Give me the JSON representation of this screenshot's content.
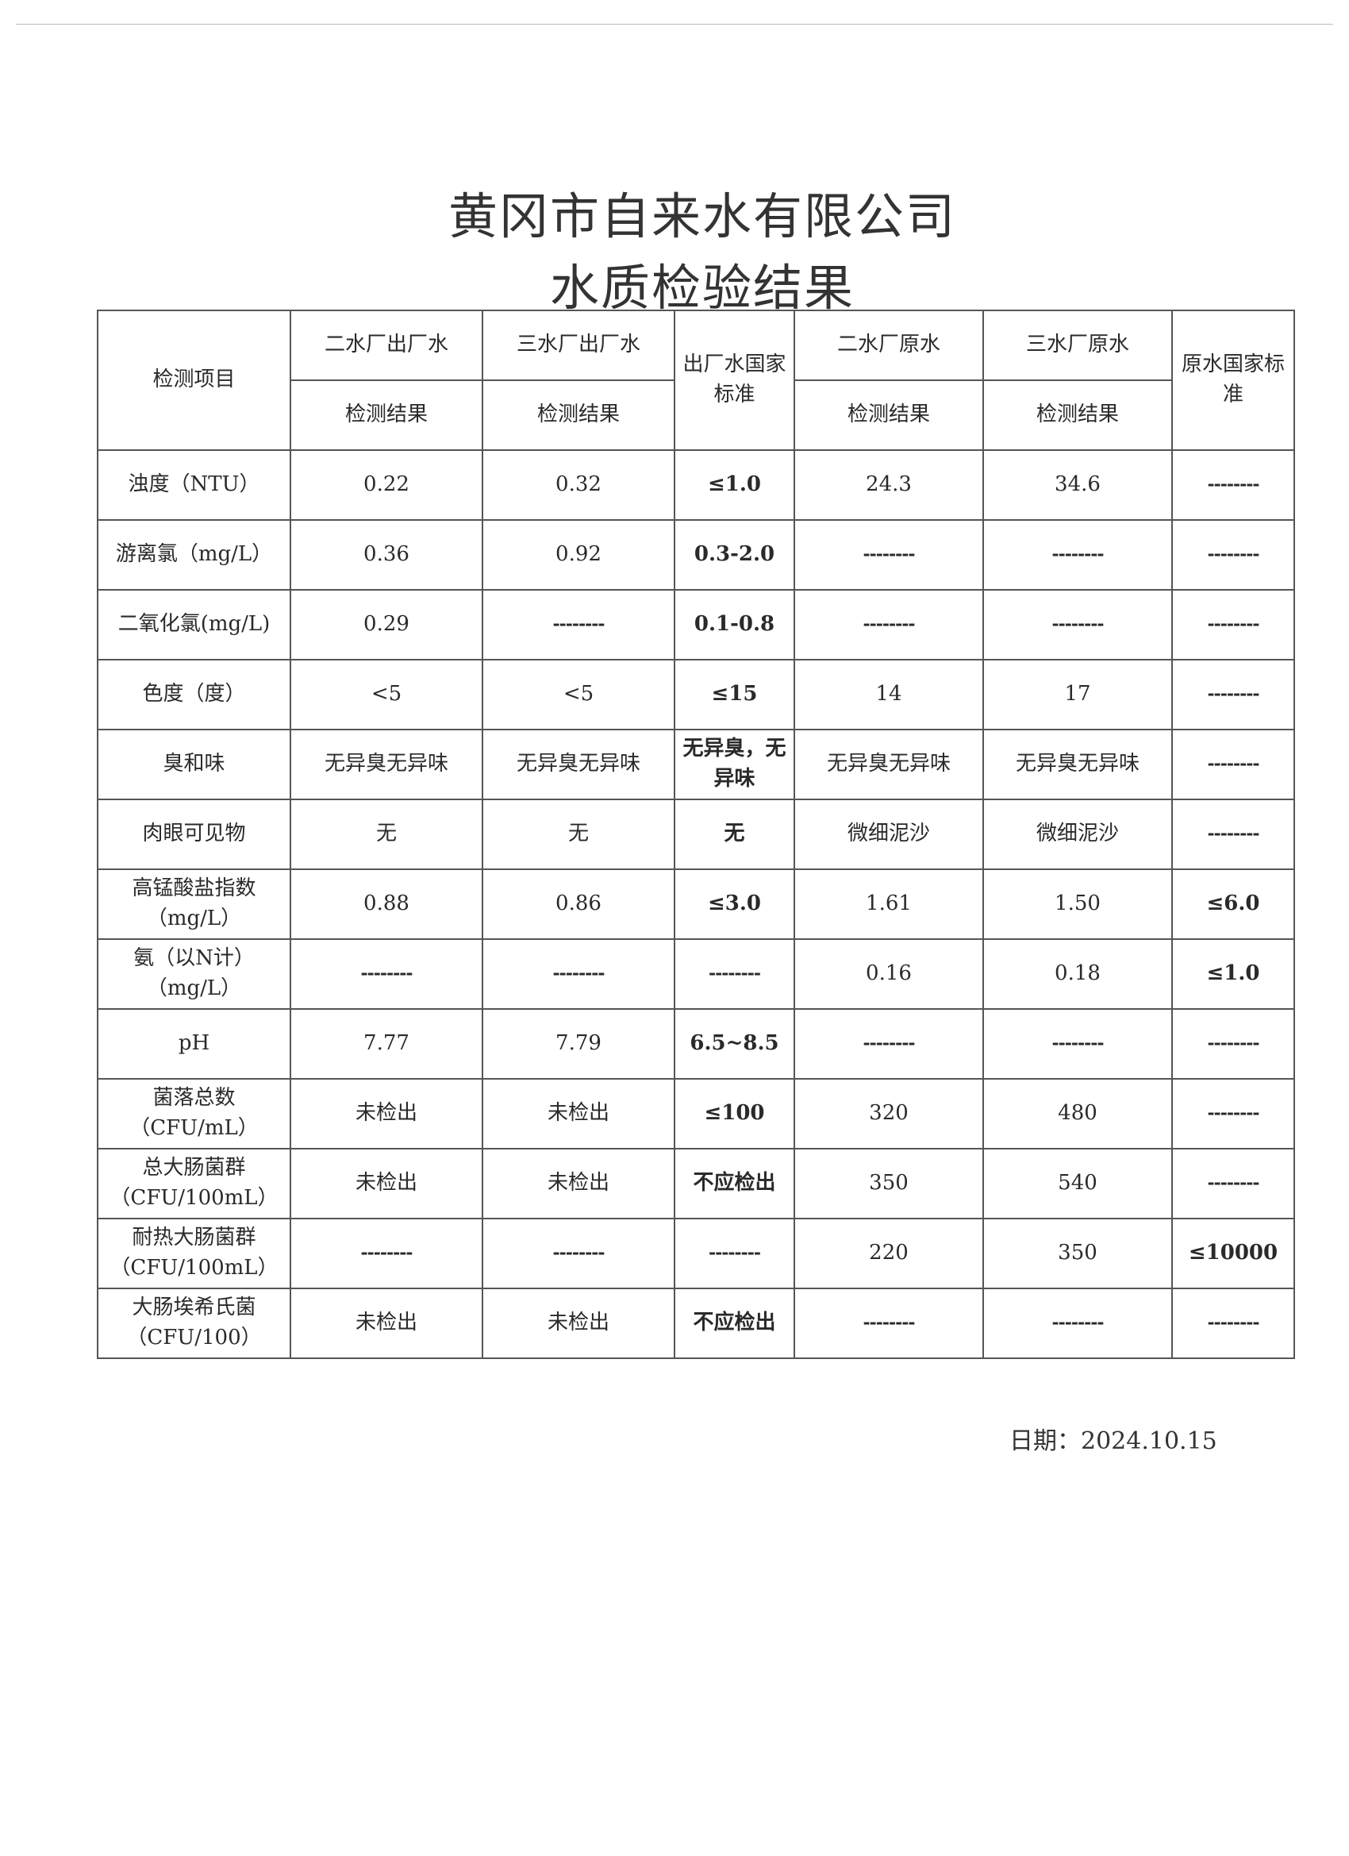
{
  "title": {
    "line1": "黄冈市自来水有限公司",
    "line2": "水质检验结果"
  },
  "table": {
    "header": {
      "item": "检测项目",
      "col1": "二水厂出厂水",
      "col2": "三水厂出厂水",
      "std_out": "出厂水国家标准",
      "col3": "二水厂原水",
      "col4": "三水厂原水",
      "std_raw": "原水国家标准",
      "sub": "检测结果"
    },
    "rows": [
      {
        "item": "浊度（NTU）",
        "c1": "0.22",
        "c2": "0.32",
        "s1": "≤1.0",
        "c3": "24.3",
        "c4": "34.6",
        "s2": "--------"
      },
      {
        "item": "游离氯（mg/L）",
        "c1": "0.36",
        "c2": "0.92",
        "s1": "0.3-2.0",
        "c3": "--------",
        "c4": "--------",
        "s2": "--------"
      },
      {
        "item": "二氧化氯(mg/L)",
        "c1": "0.29",
        "c2": "--------",
        "s1": "0.1-0.8",
        "c3": "--------",
        "c4": "--------",
        "s2": "--------"
      },
      {
        "item": "色度（度）",
        "c1": "<5",
        "c2": "<5",
        "s1": "≤15",
        "c3": "14",
        "c4": "17",
        "s2": "--------"
      },
      {
        "item": "臭和味",
        "c1": "无异臭无异味",
        "c2": "无异臭无异味",
        "s1": "无异臭，无异味",
        "c3": "无异臭无异味",
        "c4": "无异臭无异味",
        "s2": "--------"
      },
      {
        "item": "肉眼可见物",
        "c1": "无",
        "c2": "无",
        "s1": "无",
        "c3": "微细泥沙",
        "c4": "微细泥沙",
        "s2": "--------"
      },
      {
        "item": "高锰酸盐指数（mg/L）",
        "c1": "0.88",
        "c2": "0.86",
        "s1": "≤3.0",
        "c3": "1.61",
        "c4": "1.50",
        "s2": "≤6.0"
      },
      {
        "item": "氨（以N计）（mg/L）",
        "c1": "--------",
        "c2": "--------",
        "s1": "--------",
        "c3": "0.16",
        "c4": "0.18",
        "s2": "≤1.0"
      },
      {
        "item": "pH",
        "c1": "7.77",
        "c2": "7.79",
        "s1": "6.5~8.5",
        "c3": "--------",
        "c4": "--------",
        "s2": "--------"
      },
      {
        "item": "菌落总数（CFU/mL）",
        "c1": "未检出",
        "c2": "未检出",
        "s1": "≤100",
        "c3": "320",
        "c4": "480",
        "s2": "--------"
      },
      {
        "item": "总大肠菌群（CFU/100mL）",
        "c1": "未检出",
        "c2": "未检出",
        "s1": "不应检出",
        "c3": "350",
        "c4": "540",
        "s2": "--------"
      },
      {
        "item": "耐热大肠菌群（CFU/100mL）",
        "c1": "--------",
        "c2": "--------",
        "s1": "--------",
        "c3": "220",
        "c4": "350",
        "s2": "≤10000"
      },
      {
        "item": "大肠埃希氏菌（CFU/100）",
        "c1": "未检出",
        "c2": "未检出",
        "s1": "不应检出",
        "c3": "--------",
        "c4": "--------",
        "s2": "--------"
      }
    ]
  },
  "footer": {
    "date": "日期：2024.10.15"
  }
}
